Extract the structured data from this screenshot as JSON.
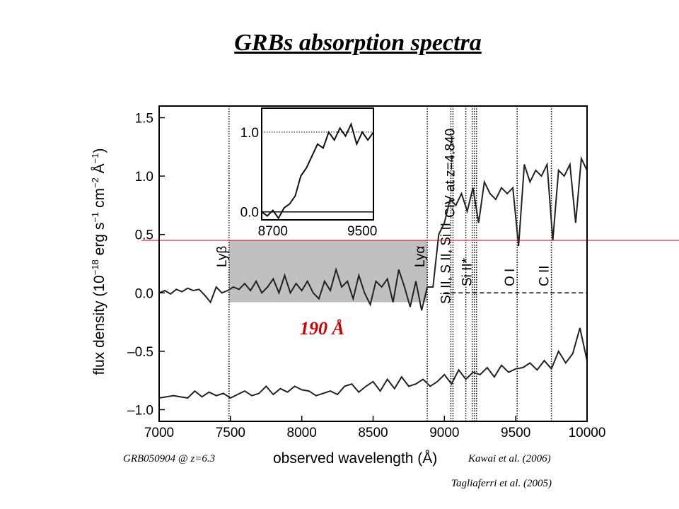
{
  "slide": {
    "title": "GRBs absorption spectra"
  },
  "captions": {
    "object": "GRB050904 @ z=6.3",
    "ref_kawai": "Kawai et al. (2006)",
    "ref_tagliaferri": "Tagliaferri et al. (2005)"
  },
  "annotations": {
    "width_label": "190 Å",
    "colors": {
      "marker": "#cc0000",
      "band": "#c0c0c0"
    }
  },
  "chart_data": [
    {
      "type": "line",
      "xlabel": "observed wavelength (Å)",
      "ylabel_parts": [
        "flux density (10",
        "−18",
        " erg s",
        "−1",
        " cm",
        "−2",
        " Å",
        "−1",
        ")"
      ],
      "xlim": [
        7000,
        10000
      ],
      "ylim": [
        -1.1,
        1.6
      ],
      "xticks": [
        7000,
        7500,
        8000,
        8500,
        9000,
        9500,
        10000
      ],
      "xtick_labels": [
        "7000",
        "7500",
        "8000",
        "8500",
        "9000",
        "9500",
        "10000"
      ],
      "yticks": [
        1.5,
        1.0,
        0.5,
        0.0,
        -0.5,
        -1.0
      ],
      "ytick_labels": [
        "1.5",
        "1.0",
        "0.5",
        "0.0",
        "–0.5",
        "–1.0"
      ],
      "lines": [
        {
          "x": 7490,
          "label": "Lyβ"
        },
        {
          "x": 8880,
          "label": "Lyα"
        },
        {
          "x": 9045,
          "label": ""
        },
        {
          "x": 9060,
          "label": "Si II, S II, Si II"
        },
        {
          "x": 9150,
          "label": ""
        },
        {
          "x": 9195,
          "label": ""
        },
        {
          "x": 9210,
          "label": "Si II*"
        },
        {
          "x": 9225,
          "label": ""
        },
        {
          "x": 9510,
          "label": "O I"
        },
        {
          "x": 9750,
          "label": "C II"
        }
      ],
      "line_annotation": {
        "x": 9090,
        "label": "CIV at z=4.840"
      },
      "reference_line": {
        "y": 0.45
      },
      "shaded_region": {
        "x": [
          7490,
          8880
        ],
        "y": [
          -0.08,
          0.45
        ]
      },
      "series": [
        {
          "x": [
            7000,
            7040,
            7080,
            7120,
            7160,
            7200,
            7240,
            7280,
            7320,
            7360,
            7400,
            7440,
            7480,
            7520,
            7560,
            7600,
            7640,
            7680,
            7720,
            7760,
            7800,
            7840,
            7880,
            7920,
            7960,
            8000,
            8040,
            8080,
            8120,
            8160,
            8200,
            8240,
            8280,
            8320,
            8360,
            8400,
            8440,
            8480,
            8520,
            8560,
            8600,
            8640,
            8680,
            8720,
            8760,
            8800,
            8840,
            8880,
            8920,
            8960,
            9000,
            9040,
            9080,
            9120,
            9160,
            9200,
            9240,
            9280,
            9320,
            9360,
            9400,
            9440,
            9480,
            9520,
            9560,
            9600,
            9640,
            9680,
            9720,
            9760,
            9800,
            9840,
            9880,
            9920,
            9960,
            10000
          ],
          "y": [
            0.0,
            0.02,
            -0.01,
            0.03,
            0.01,
            0.04,
            0.02,
            0.03,
            -0.02,
            -0.08,
            0.05,
            0.0,
            0.02,
            0.05,
            0.03,
            0.08,
            0.02,
            0.1,
            0.0,
            0.05,
            0.12,
            0.0,
            0.15,
            0.0,
            0.08,
            0.02,
            0.1,
            0.0,
            -0.05,
            0.1,
            0.02,
            0.2,
            0.05,
            0.1,
            -0.05,
            0.15,
            0.0,
            -0.1,
            0.1,
            0.05,
            0.12,
            -0.08,
            0.2,
            0.05,
            -0.12,
            0.1,
            -0.15,
            0.05,
            0.05,
            0.5,
            0.6,
            0.8,
            0.75,
            0.85,
            0.7,
            0.9,
            0.6,
            0.95,
            0.85,
            0.8,
            0.9,
            0.85,
            0.9,
            0.4,
            1.1,
            0.95,
            1.05,
            1.0,
            1.1,
            0.45,
            1.05,
            1.0,
            1.1,
            0.6,
            1.15,
            1.05
          ]
        },
        {
          "x": [
            7000,
            7100,
            7200,
            7250,
            7300,
            7350,
            7400,
            7450,
            7500,
            7550,
            7600,
            7650,
            7700,
            7750,
            7800,
            7850,
            7900,
            7950,
            8000,
            8050,
            8100,
            8150,
            8200,
            8250,
            8300,
            8350,
            8400,
            8450,
            8500,
            8550,
            8600,
            8650,
            8700,
            8750,
            8800,
            8850,
            8900,
            8950,
            9000,
            9050,
            9100,
            9150,
            9200,
            9250,
            9300,
            9350,
            9400,
            9450,
            9500,
            9550,
            9600,
            9650,
            9700,
            9750,
            9800,
            9850,
            9900,
            9950,
            10000
          ],
          "y": [
            -0.9,
            -0.88,
            -0.9,
            -0.84,
            -0.89,
            -0.85,
            -0.88,
            -0.86,
            -0.9,
            -0.87,
            -0.84,
            -0.88,
            -0.86,
            -0.8,
            -0.87,
            -0.82,
            -0.85,
            -0.8,
            -0.83,
            -0.84,
            -0.88,
            -0.86,
            -0.84,
            -0.87,
            -0.8,
            -0.78,
            -0.85,
            -0.8,
            -0.76,
            -0.84,
            -0.74,
            -0.82,
            -0.72,
            -0.8,
            -0.78,
            -0.74,
            -0.8,
            -0.76,
            -0.7,
            -0.78,
            -0.66,
            -0.74,
            -0.68,
            -0.7,
            -0.64,
            -0.72,
            -0.62,
            -0.68,
            -0.65,
            -0.64,
            -0.6,
            -0.66,
            -0.58,
            -0.65,
            -0.5,
            -0.6,
            -0.52,
            -0.3,
            -0.58
          ]
        }
      ]
    },
    {
      "type": "line",
      "title": "",
      "xlim": [
        8600,
        9600
      ],
      "ylim": [
        -0.1,
        1.3
      ],
      "xticks": [
        8700,
        9500
      ],
      "xtick_labels": [
        "8700",
        "9500"
      ],
      "yticks": [
        1.0,
        0.0
      ],
      "ytick_labels": [
        "1.0",
        "0.0"
      ],
      "series": [
        {
          "x": [
            8600,
            8650,
            8700,
            8750,
            8800,
            8850,
            8900,
            8950,
            9000,
            9050,
            9100,
            9150,
            9200,
            9250,
            9300,
            9350,
            9400,
            9450,
            9500,
            9550,
            9600
          ],
          "y": [
            0.0,
            -0.05,
            0.02,
            -0.08,
            0.05,
            0.1,
            0.2,
            0.45,
            0.55,
            0.7,
            0.85,
            0.8,
            1.0,
            0.9,
            1.05,
            0.95,
            1.1,
            0.85,
            1.0,
            0.9,
            1.0
          ]
        }
      ]
    }
  ]
}
